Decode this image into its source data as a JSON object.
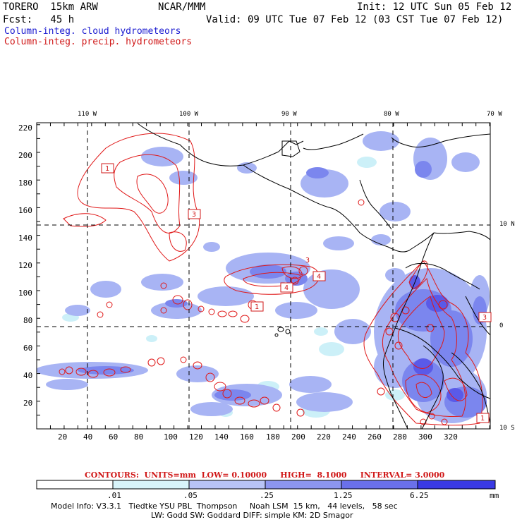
{
  "header": {
    "model": "TORERO  15km ARW",
    "org": "NCAR/MMM",
    "init": "Init: 12 UTC Sun 05 Feb 12",
    "fcst": "Fcst:   45 h",
    "valid": "Valid: 09 UTC Tue 07 Feb 12 (03 CST Tue 07 Feb 12)"
  },
  "legend_fields": {
    "cloud": "Column-integ. cloud hydrometeors",
    "precip": "Column-integ. precip. hydrometeors"
  },
  "map": {
    "lon_labels": [
      "110 W",
      "100 W",
      "90 W",
      "80 W",
      "70 W"
    ],
    "lat_labels": [
      "10 N",
      "0",
      "10 S"
    ],
    "y_ticks": [
      "220",
      "200",
      "180",
      "160",
      "140",
      "120",
      "100",
      "80",
      "60",
      "40",
      "20"
    ],
    "x_ticks": [
      "20",
      "40",
      "60",
      "80",
      "100",
      "120",
      "140",
      "160",
      "180",
      "200",
      "220",
      "240",
      "260",
      "280",
      "300",
      "320"
    ],
    "maxima_labels": [
      "1",
      "3",
      "4",
      "4",
      "3",
      "1",
      "3",
      "1"
    ],
    "colors": {
      "cloud_light": "#ccf0f8",
      "cloud_mid": "#a8b4f4",
      "cloud_dark": "#7b86ee",
      "cloud_deep": "#5a5ae8",
      "contour": "#e01818",
      "coast": "#000000"
    }
  },
  "contours_text": "CONTOURS:  UNITS=mm  LOW= 0.10000     HIGH=  8.1000     INTERVAL= 3.0000",
  "colorbar": {
    "ticks": [
      ".01",
      ".05",
      ".25",
      "1.25",
      "6.25"
    ],
    "unit": "mm",
    "colors": [
      "#ffffff",
      "#d8f4fa",
      "#b8c4f6",
      "#8c96f0",
      "#6a70ea",
      "#4444e4",
      "#2222e0"
    ]
  },
  "model_info": {
    "line1": "Model Info: V3.3.1   Tiedtke YSU PBL  Thompson     Noah LSM  15 km,   44 levels,   58 sec",
    "line2": "LW: Godd SW: Goddard DIFF: simple KM: 2D Smagor"
  }
}
